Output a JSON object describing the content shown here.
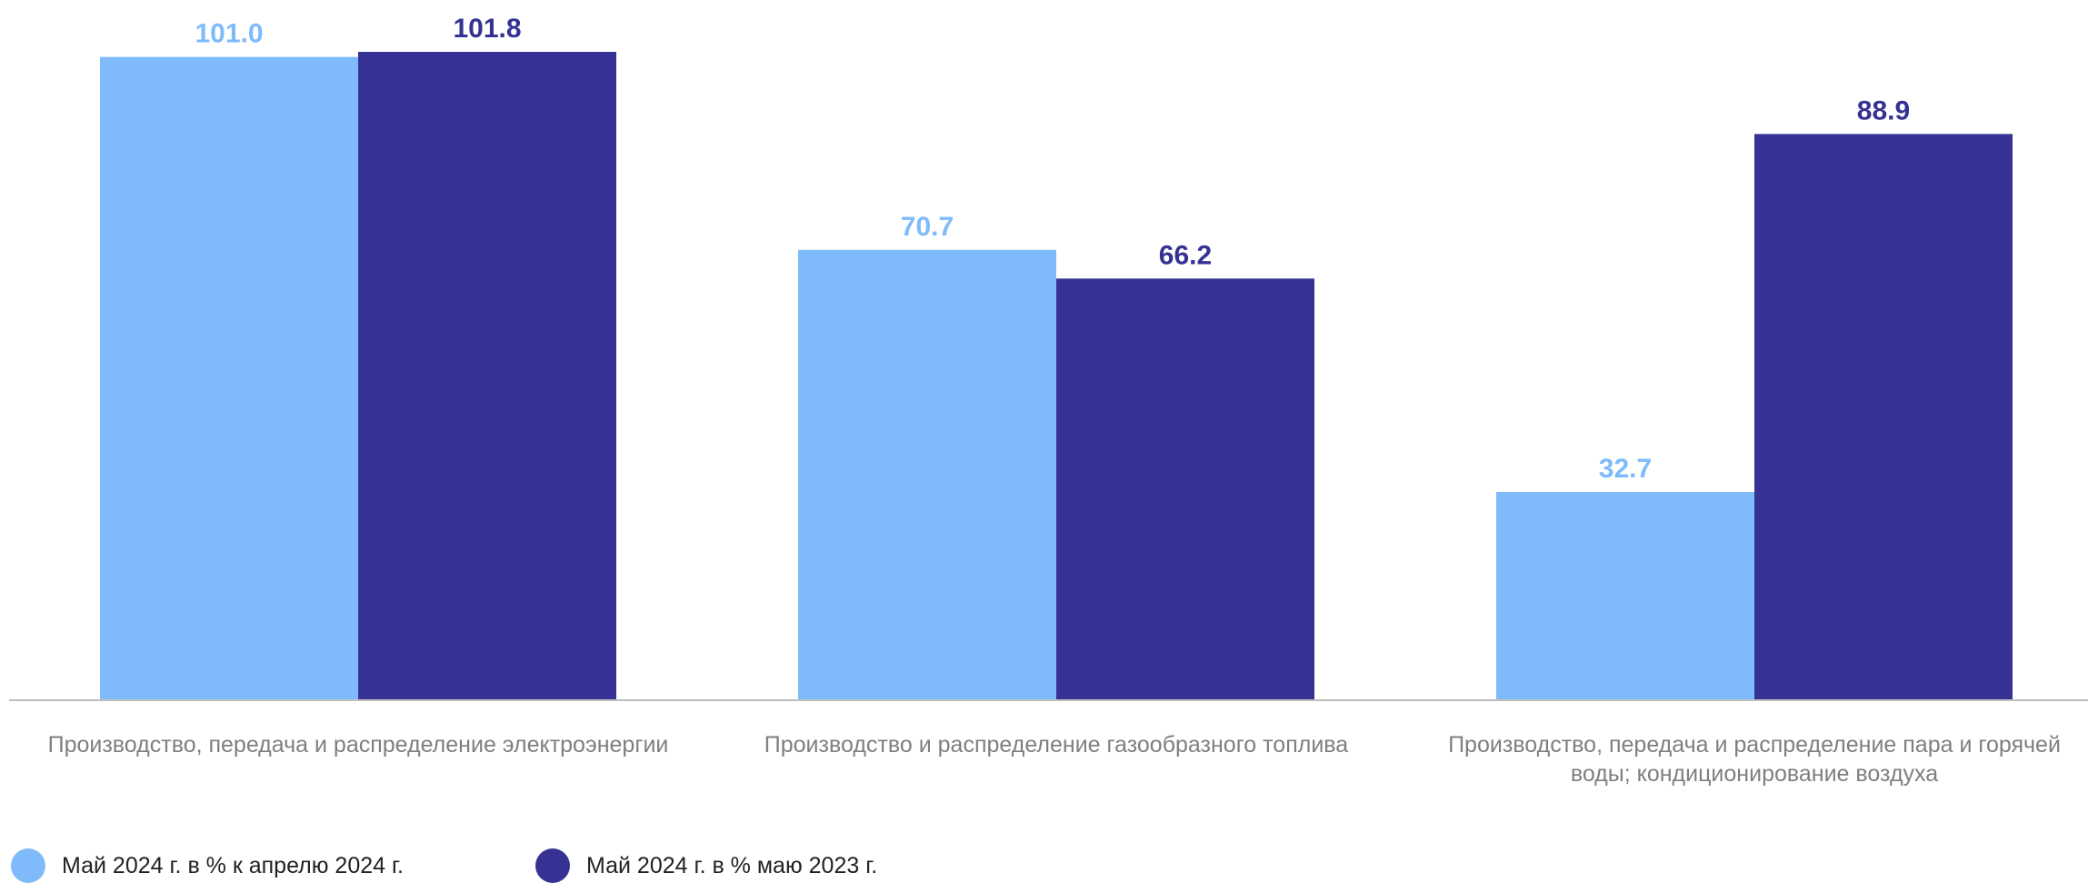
{
  "chart_data": {
    "type": "bar",
    "categories": [
      [
        "Производство, передача и распределение электроэнергии"
      ],
      [
        "Производство и распределение газообразного топлива"
      ],
      [
        "Производство, передача и распределение пара и горячей",
        "воды; кондиционирование воздуха"
      ]
    ],
    "series": [
      {
        "name": "Май 2024 г. в % к апрелю 2024 г.",
        "color": "#7fbbfa",
        "values": [
          101.0,
          70.7,
          32.7
        ],
        "labels": [
          "101.0",
          "70.7",
          "32.7"
        ]
      },
      {
        "name": "Май 2024 г. в %  маю 2023 г.",
        "color": "#353293",
        "values": [
          101.8,
          66.2,
          88.9
        ],
        "labels": [
          "101.8",
          "66.2",
          "88.9"
        ]
      }
    ],
    "ylim": [
      0,
      101.8
    ],
    "grid": false,
    "legend_position": "bottom-left",
    "title": "",
    "xlabel": "",
    "ylabel": ""
  }
}
